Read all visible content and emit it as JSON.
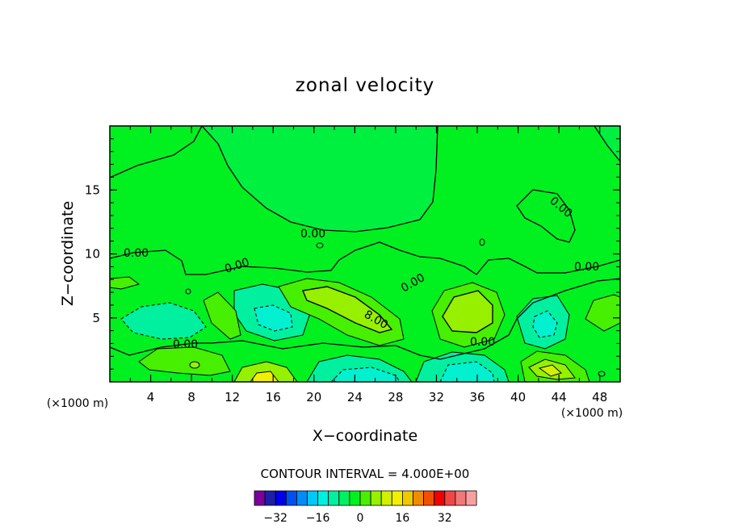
{
  "chart_data": {
    "type": "heatmap",
    "title": "zonal velocity",
    "xlabel": "X−coordinate",
    "ylabel": "Z−coordinate",
    "x_unit": "(×1000 m)",
    "z_unit": "(×1000 m)",
    "xlim": [
      0,
      50
    ],
    "ylim": [
      0,
      20
    ],
    "x_ticks": [
      "4",
      "8",
      "12",
      "16",
      "20",
      "24",
      "28",
      "32",
      "36",
      "40",
      "44",
      "48"
    ],
    "y_ticks": [
      "5",
      "10",
      "15"
    ],
    "contour_interval_text": "CONTOUR INTERVAL = 4.000E+00",
    "contour_labels": [
      "0.00",
      "0.00",
      "0.00",
      "0.00",
      "0.00",
      "0.00",
      "0.00",
      "0.00",
      "0.00",
      "8.00"
    ],
    "colorbar": {
      "colors": [
        "#7a009e",
        "#1e1ea8",
        "#0000e8",
        "#0050f0",
        "#008cf5",
        "#00c8f8",
        "#00f0e0",
        "#00f0a0",
        "#00f060",
        "#00f020",
        "#46f000",
        "#96f000",
        "#d2f000",
        "#f0f000",
        "#f0c800",
        "#f08c00",
        "#f05000",
        "#f00000",
        "#f04646",
        "#f07878",
        "#f8a0a0"
      ],
      "tick_labels": [
        "−32",
        "−16",
        "0",
        "16",
        "32"
      ]
    }
  }
}
